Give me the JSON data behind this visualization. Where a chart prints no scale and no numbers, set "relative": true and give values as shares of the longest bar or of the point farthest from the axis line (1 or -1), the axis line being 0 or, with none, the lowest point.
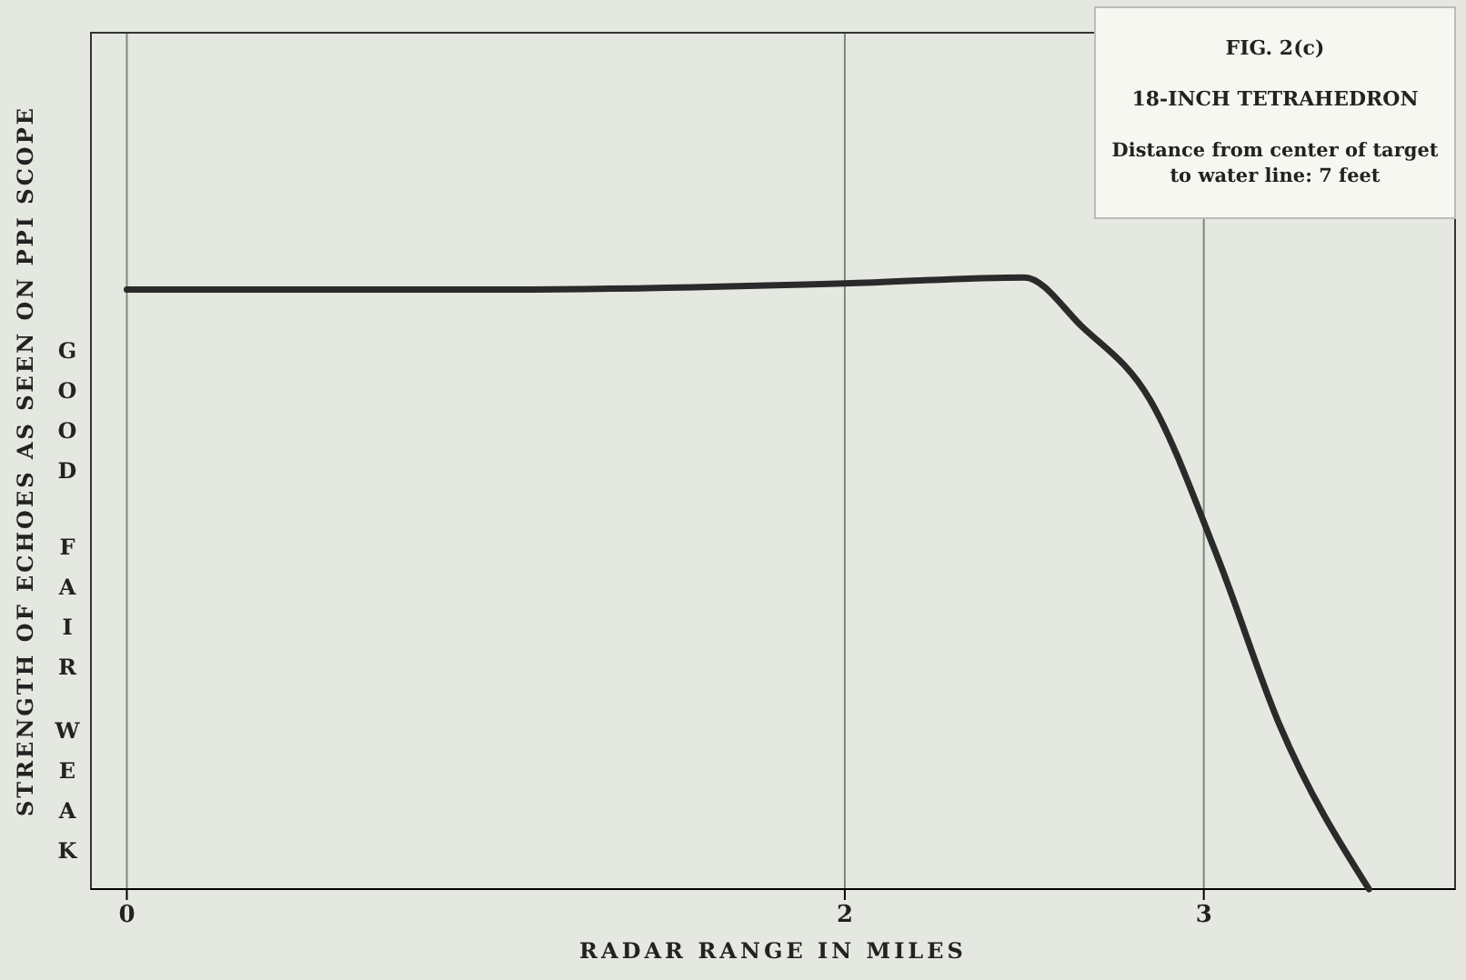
{
  "chart_data": {
    "type": "line",
    "title": "FIG. 2(c)",
    "subtitle": "18-INCH TETRAHEDRON",
    "xlabel": "RADAR RANGE IN MILES",
    "ylabel": "STRENGTH OF ECHOES AS SEEN ON PPI SCOPE",
    "annotations": [
      "GOOD",
      "FAIR",
      "WEAK",
      "Distance from center of target to water line: 7 feet"
    ],
    "relative": true,
    "xlim": [
      -0.1,
      3.7
    ],
    "xticks": [
      0,
      2,
      3
    ],
    "grid": true,
    "line_style": "solid",
    "marker": "none",
    "series": [
      {
        "color": "#2a2a2a",
        "x": [
          0,
          1,
          2,
          2.5,
          2.66,
          2.85,
          3.04,
          3.21,
          3.46
        ],
        "values": [
          0.98,
          0.98,
          0.99,
          1,
          0.92,
          0.8,
          0.54,
          0.27,
          0
        ]
      }
    ]
  }
}
